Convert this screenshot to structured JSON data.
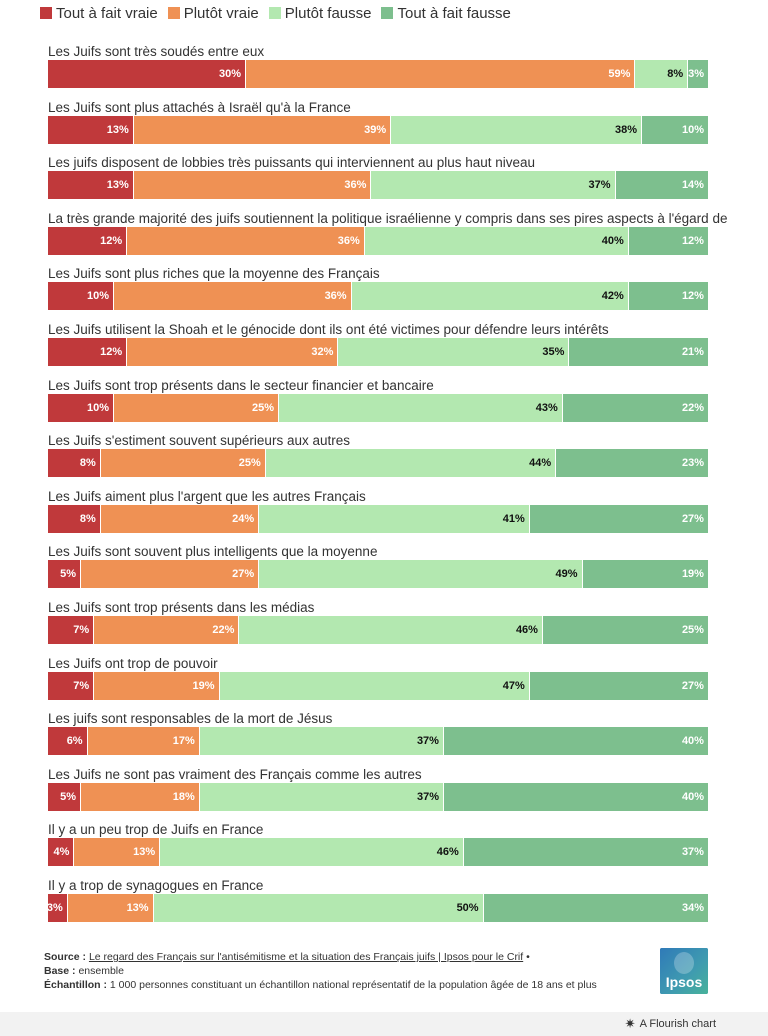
{
  "colors": {
    "tout_vraie": "#c0393b",
    "plutot_vraie": "#ef9154",
    "plutot_fausse": "#b3e8b0",
    "tout_fausse": "#7dbf8e"
  },
  "chart_data": {
    "type": "bar",
    "orientation": "horizontal",
    "stacked": true,
    "title": "",
    "xlabel": "",
    "ylabel": "",
    "legend_position": "top-left",
    "xlim": [
      0,
      100
    ],
    "series": [
      {
        "name": "Tout à fait vraie",
        "color": "#c0393b",
        "values": [
          30,
          13,
          13,
          12,
          10,
          12,
          10,
          8,
          8,
          5,
          7,
          7,
          6,
          5,
          4,
          3
        ]
      },
      {
        "name": "Plutôt vraie",
        "color": "#ef9154",
        "values": [
          59,
          39,
          36,
          36,
          36,
          32,
          25,
          25,
          24,
          27,
          22,
          19,
          17,
          18,
          13,
          13
        ]
      },
      {
        "name": "Plutôt fausse",
        "color": "#b3e8b0",
        "values": [
          8,
          38,
          37,
          40,
          42,
          35,
          43,
          44,
          41,
          49,
          46,
          47,
          37,
          37,
          46,
          50
        ]
      },
      {
        "name": "Tout à fait fausse",
        "color": "#7dbf8e",
        "values": [
          3,
          10,
          14,
          12,
          12,
          21,
          22,
          23,
          27,
          19,
          25,
          27,
          40,
          40,
          37,
          34
        ]
      }
    ],
    "categories": [
      "Les Juifs sont très soudés entre eux",
      "Les Juifs sont plus attachés à Israël qu'à la France",
      "Les juifs disposent de lobbies très puissants qui interviennent au plus haut niveau",
      "La très grande majorité des juifs soutiennent la politique israélienne y compris dans ses pires aspects à l'égard de",
      "Les Juifs sont plus riches que la moyenne des Français",
      "Les Juifs utilisent la Shoah et le génocide dont ils ont été victimes pour défendre leurs intérêts",
      "Les Juifs sont trop présents dans le secteur financier et bancaire",
      "Les Juifs s'estiment souvent supérieurs aux autres",
      "Les Juifs aiment plus l'argent que les autres Français",
      "Les Juifs sont souvent plus intelligents que la moyenne",
      "Les Juifs sont trop présents dans les médias",
      "Les Juifs ont trop de pouvoir",
      "Les juifs sont responsables de la mort de Jésus",
      "Les Juifs ne sont pas vraiment des Français comme les autres",
      "Il y a un peu trop de Juifs en France",
      "Il y a trop de synagogues en France"
    ]
  },
  "footer": {
    "source_label": "Source :",
    "source_text": "Le regard des Français sur l'antisémitisme et la situation des Français juifs | Ipsos pour le Crif",
    "source_suffix": "•",
    "base_label": "Base :",
    "base_text": "ensemble",
    "sample_label": "Échantillon :",
    "sample_text": "1 000 personnes constituant un échantillon national représentatif de la population âgée de 18 ans et plus"
  },
  "logo": {
    "text": "Ipsos"
  },
  "credit": {
    "icon": "asterisk-icon",
    "text": "A Flourish chart"
  }
}
